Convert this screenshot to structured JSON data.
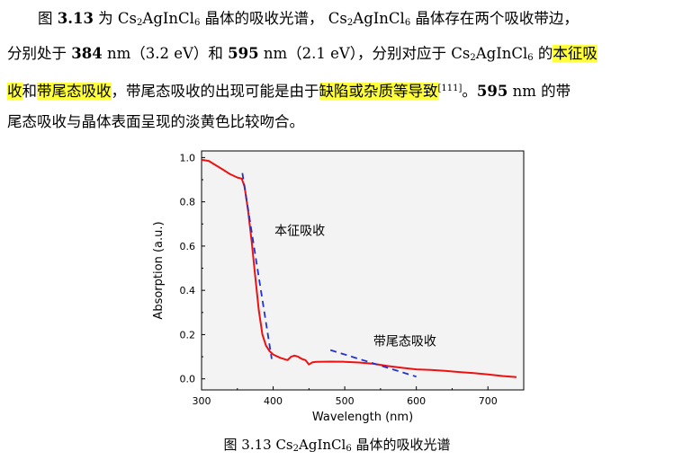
{
  "paragraph": {
    "l1_a": "图 ",
    "l1_fig": "3.13",
    "l1_b": " 为 Cs",
    "l1_s1": "2",
    "l1_c": "AgInCl",
    "l1_s2": "6",
    "l1_d": " 晶体的吸收光谱，  Cs",
    "l1_s3": "2",
    "l1_e": "AgInCl",
    "l1_s4": "6",
    "l1_f": " 晶体存在两个吸收带边，",
    "l2_a": "分别处于 ",
    "l2_n1": "384",
    "l2_b": " nm（3.2 eV）和 ",
    "l2_n2": "595",
    "l2_c": " nm（2.1 eV），分别对应于 Cs",
    "l2_s1": "2",
    "l2_d": "AgInCl",
    "l2_s2": "6",
    "l2_e": " 的",
    "l2_hl": "本征吸",
    "l3_hl1": "收",
    "l3_a": "和",
    "l3_hl2": "带尾态吸收",
    "l3_b": "，带尾态吸收的出现可能是由于",
    "l3_hl3": "缺陷或杂质等导致",
    "l3_ref": "[111]",
    "l3_c": "。",
    "l3_n": "595",
    "l3_d": " nm 的带",
    "l4": "尾态吸收与晶体表面呈现的淡黄色比较吻合。"
  },
  "caption": {
    "a": "图  3.13 Cs",
    "s1": "2",
    "b": "AgInCl",
    "s2": "6",
    "c": " 晶体的吸收光谱"
  },
  "chart_data": {
    "type": "line",
    "xlabel": "Wavelength (nm)",
    "ylabel": "Absorption (a.u.)",
    "xlim": [
      300,
      750
    ],
    "ylim": [
      -0.05,
      1.03
    ],
    "xticks": [
      300,
      400,
      500,
      600,
      700
    ],
    "yticks": [
      0.0,
      0.2,
      0.4,
      0.6,
      0.8,
      1.0
    ],
    "xtick_labels": [
      "300",
      "400",
      "500",
      "600",
      "700"
    ],
    "ytick_labels": [
      "0.0",
      "0.2",
      "0.4",
      "0.6",
      "0.8",
      "1.0"
    ],
    "grid": false,
    "series": [
      {
        "color": "#ee1111",
        "x": [
          300,
          310,
          320,
          330,
          340,
          350,
          356,
          360,
          365,
          370,
          375,
          380,
          385,
          390,
          395,
          400,
          410,
          420,
          425,
          430,
          435,
          440,
          445,
          450,
          455,
          460,
          480,
          500,
          520,
          540,
          560,
          580,
          600,
          620,
          640,
          660,
          680,
          700,
          720,
          740
        ],
        "y": [
          0.99,
          0.985,
          0.965,
          0.945,
          0.925,
          0.91,
          0.905,
          0.87,
          0.76,
          0.62,
          0.46,
          0.31,
          0.2,
          0.15,
          0.125,
          0.11,
          0.095,
          0.085,
          0.1,
          0.105,
          0.1,
          0.09,
          0.085,
          0.065,
          0.075,
          0.077,
          0.078,
          0.077,
          0.074,
          0.068,
          0.058,
          0.05,
          0.043,
          0.04,
          0.036,
          0.031,
          0.026,
          0.02,
          0.013,
          0.008
        ]
      }
    ],
    "fit_lines": [
      {
        "color": "#2233cc",
        "style": "dashed",
        "x": [
          357,
          398
        ],
        "y": [
          0.93,
          0.09
        ]
      },
      {
        "color": "#2233cc",
        "style": "dashed",
        "x": [
          480,
          600
        ],
        "y": [
          0.13,
          0.01
        ]
      }
    ],
    "annotations": [
      {
        "text": "本征吸收",
        "x": 402,
        "y": 0.65
      },
      {
        "text": "带尾态吸收",
        "x": 540,
        "y": 0.15
      }
    ]
  }
}
